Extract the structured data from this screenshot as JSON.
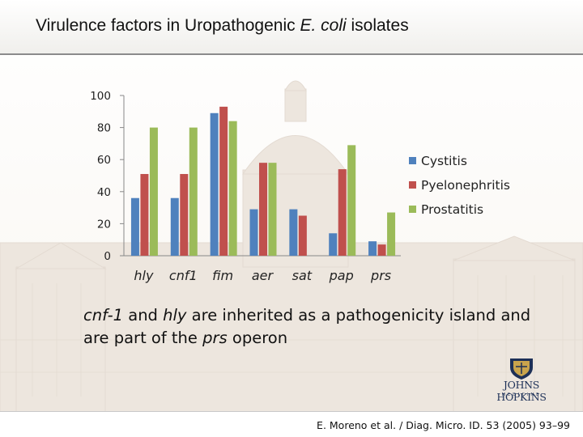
{
  "slide": {
    "title": {
      "pre": "Virulence factors in Uropathogenic ",
      "italic": "E. coli",
      "post": " isolates"
    },
    "caption": {
      "p1": "cnf-1",
      "p2": " and ",
      "p3": "hly",
      "p4": " are inherited as a pathogenicity island and are part of the ",
      "p5": "prs",
      "p6": " operon"
    },
    "citation": "E. Moreno et al. / Diag. Micro. ID. 53 (2005) 93–99",
    "logo": {
      "name": "JOHNS HOPKINS",
      "sub": "MEDICINE"
    }
  },
  "chart_data": {
    "type": "bar",
    "title": "",
    "xlabel": "",
    "ylabel": "",
    "categories": [
      "hly",
      "cnf1",
      "fim",
      "aer",
      "sat",
      "pap",
      "prs"
    ],
    "ylim": [
      0,
      100
    ],
    "yticks": [
      0,
      20,
      40,
      60,
      80,
      100
    ],
    "series": [
      {
        "name": "Cystitis",
        "color": "#4f81bd",
        "values": [
          36,
          36,
          89,
          29,
          29,
          14,
          9
        ]
      },
      {
        "name": "Pyelonephritis",
        "color": "#c0504d",
        "values": [
          51,
          51,
          93,
          58,
          25,
          54,
          7
        ]
      },
      {
        "name": "Prostatitis",
        "color": "#9bbb59",
        "values": [
          80,
          80,
          84,
          58,
          null,
          69,
          27
        ]
      }
    ],
    "legend": "right",
    "grid": false
  },
  "colors": {
    "title_rule": "#8b8b8b",
    "logo": "#1d3057"
  }
}
